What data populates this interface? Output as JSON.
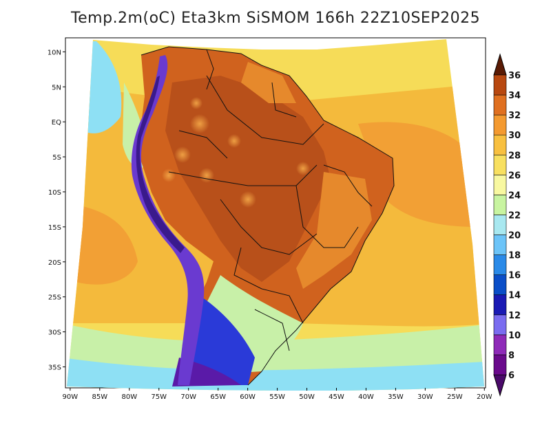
{
  "title": "Temp.2m(oC) Eta3km SiSMOM 166h 22Z10SEP2025",
  "axes": {
    "lon_labels": [
      "90W",
      "85W",
      "80W",
      "75W",
      "70W",
      "65W",
      "60W",
      "55W",
      "50W",
      "45W",
      "40W",
      "35W",
      "30W",
      "25W",
      "20W"
    ],
    "lon_values": [
      -90,
      -85,
      -80,
      -75,
      -70,
      -65,
      -60,
      -55,
      -50,
      -45,
      -40,
      -35,
      -30,
      -25,
      -20
    ],
    "lat_labels": [
      "10N",
      "5N",
      "EQ",
      "5S",
      "10S",
      "15S",
      "20S",
      "25S",
      "30S",
      "35S"
    ],
    "lat_values": [
      10,
      5,
      0,
      -5,
      -10,
      -15,
      -20,
      -25,
      -30,
      -35
    ],
    "lon_range": [
      -90.8,
      -19.8
    ],
    "lat_range": [
      -38,
      12
    ]
  },
  "colorbar": {
    "labels": [
      "6",
      "8",
      "10",
      "12",
      "14",
      "16",
      "18",
      "20",
      "22",
      "24",
      "26",
      "28",
      "30",
      "32",
      "34",
      "36"
    ],
    "colors": [
      "#6a0a8c",
      "#8e2ab8",
      "#7a6cf0",
      "#1a1ab4",
      "#0a4ec8",
      "#2a8ae8",
      "#6cc4f8",
      "#a8e8f0",
      "#c8f4a0",
      "#f8f8a0",
      "#f8e060",
      "#f8c040",
      "#f49a30",
      "#e07020",
      "#b84810",
      "#7a2a08"
    ],
    "arrow_top_color": "#5a1a04",
    "arrow_bottom_color": "#4a0a6a"
  },
  "map_colors": {
    "ocean_north": "#f6dc58",
    "ocean_mid": "#f4ba3c",
    "ocean_warm": "#f2a035",
    "ocean_cool": "#c8f0a8",
    "ocean_south": "#8ee0f4",
    "land_hot": "#d0621e",
    "land_hotter": "#b8501a",
    "land_warm": "#e6892c",
    "andes_cold": "#6a3ad0",
    "andes_colder": "#3a1a8c",
    "south_cold": "#2a3ad8",
    "southmost": "#5a1aa8",
    "border": "#111111"
  }
}
